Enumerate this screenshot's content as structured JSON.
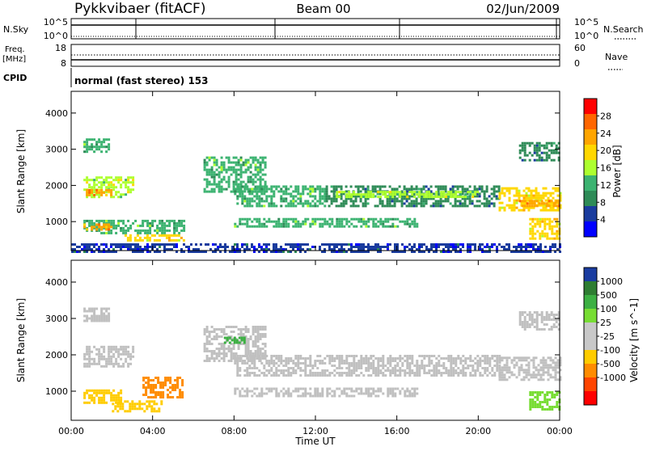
{
  "header": {
    "station": "Pykkvibaer (fitACF)",
    "beam": "Beam 00",
    "date": "02/Jun/2009"
  },
  "top_panels": {
    "nsky_label": "N.Sky",
    "nsky_ticks": [
      "10^5",
      "10^0"
    ],
    "nsearch_label": "N.Search",
    "nsearch_ticks": [
      "10^5",
      "10^0"
    ],
    "freq_label": "Freq.",
    "freq_unit": "[MHz]",
    "freq_ticks": [
      "18",
      "8"
    ],
    "nave_label": "Nave",
    "nave_ticks": [
      "60",
      "0"
    ],
    "cpid_label": "CPID",
    "cpid_text": "normal (fast stereo) 153"
  },
  "colors": {
    "scale": [
      "#0000ff",
      "#1a3c9e",
      "#2e8b57",
      "#3cb371",
      "#adff2f",
      "#ffd700",
      "#ffa500",
      "#ff6600",
      "#ff0000"
    ],
    "velocity": [
      "#1a3ca0",
      "#2e7d32",
      "#3cb043",
      "#77dd33",
      "#c8c8c8",
      "#c8c8c8",
      "#ffcc00",
      "#ff8c00",
      "#ff4500",
      "#ff0000"
    ],
    "ground": "#c0c0c0"
  },
  "chart_data": [
    {
      "type": "heatmap",
      "panel": "power",
      "xlabel": "Time UT",
      "ylabel": "Slant Range [km]",
      "x_ticks": [
        "00:00",
        "04:00",
        "08:00",
        "12:00",
        "16:00",
        "20:00",
        "00:00"
      ],
      "xlim": [
        0,
        24
      ],
      "ylim": [
        200,
        4600
      ],
      "y_ticks": [
        1000,
        2000,
        3000,
        4000
      ],
      "colorbar_label": "Power [dB]",
      "colorbar_ticks": [
        4,
        8,
        12,
        16,
        20,
        24,
        28
      ],
      "colorbar_range": [
        0,
        32
      ],
      "bands": [
        {
          "t0": 0.6,
          "t1": 3.0,
          "r0": 1650,
          "r1": 2250,
          "level": 16
        },
        {
          "t0": 0.6,
          "t1": 2.0,
          "r0": 1700,
          "r1": 1900,
          "level": 24
        },
        {
          "t0": 0.6,
          "t1": 5.5,
          "r0": 700,
          "r1": 1050,
          "level": 12
        },
        {
          "t0": 0.6,
          "t1": 2.0,
          "r0": 800,
          "r1": 950,
          "level": 24
        },
        {
          "t0": 2.5,
          "t1": 5.5,
          "r0": 450,
          "r1": 650,
          "level": 20
        },
        {
          "t0": 0.6,
          "t1": 1.8,
          "r0": 2900,
          "r1": 3300,
          "level": 12
        },
        {
          "t0": 6.5,
          "t1": 9.5,
          "r0": 1800,
          "r1": 2800,
          "level": 12
        },
        {
          "t0": 8.0,
          "t1": 12.5,
          "r0": 1400,
          "r1": 2000,
          "level": 12
        },
        {
          "t0": 12.5,
          "t1": 21.0,
          "r0": 1400,
          "r1": 2000,
          "level": 8
        },
        {
          "t0": 13.0,
          "t1": 20.0,
          "r0": 1700,
          "r1": 1850,
          "level": 16
        },
        {
          "t0": 21.0,
          "t1": 24.0,
          "r0": 1300,
          "r1": 1950,
          "level": 20
        },
        {
          "t0": 22.0,
          "t1": 24.0,
          "r0": 1400,
          "r1": 1600,
          "level": 24
        },
        {
          "t0": 22.5,
          "t1": 24.0,
          "r0": 500,
          "r1": 1100,
          "level": 20
        },
        {
          "t0": 8.0,
          "t1": 17.0,
          "r0": 850,
          "r1": 1100,
          "level": 12
        },
        {
          "t0": 22.0,
          "t1": 24.0,
          "r0": 2700,
          "r1": 3200,
          "level": 8
        },
        {
          "t0": 0.0,
          "t1": 24.0,
          "r0": 180,
          "r1": 400,
          "level": 4
        }
      ]
    },
    {
      "type": "heatmap",
      "panel": "velocity",
      "xlabel": "Time UT",
      "ylabel": "Slant Range [km]",
      "x_ticks": [
        "00:00",
        "04:00",
        "08:00",
        "12:00",
        "16:00",
        "20:00",
        "00:00"
      ],
      "xlim": [
        0,
        24
      ],
      "ylim": [
        200,
        4600
      ],
      "y_ticks": [
        1000,
        2000,
        3000,
        4000
      ],
      "colorbar_label": "Velocity [m s^-1]",
      "colorbar_ticks": [
        "1000",
        "500",
        "100",
        "25",
        "-25",
        "-100",
        "-500",
        "-1000"
      ],
      "bands": [
        {
          "t0": 0.6,
          "t1": 3.0,
          "r0": 1650,
          "r1": 2250,
          "cat": "ground"
        },
        {
          "t0": 0.6,
          "t1": 1.8,
          "r0": 2900,
          "r1": 3300,
          "cat": "ground"
        },
        {
          "t0": 0.6,
          "t1": 2.5,
          "r0": 700,
          "r1": 1050,
          "cat": -100
        },
        {
          "t0": 2.0,
          "t1": 4.5,
          "r0": 450,
          "r1": 750,
          "cat": -100
        },
        {
          "t0": 3.5,
          "t1": 5.5,
          "r0": 800,
          "r1": 1400,
          "cat": -500
        },
        {
          "t0": 6.5,
          "t1": 9.5,
          "r0": 1800,
          "r1": 2800,
          "cat": "ground"
        },
        {
          "t0": 8.0,
          "t1": 21.0,
          "r0": 1400,
          "r1": 2000,
          "cat": "ground"
        },
        {
          "t0": 8.0,
          "t1": 17.0,
          "r0": 850,
          "r1": 1100,
          "cat": "ground"
        },
        {
          "t0": 21.0,
          "t1": 24.0,
          "r0": 1300,
          "r1": 1950,
          "cat": "ground"
        },
        {
          "t0": 22.0,
          "t1": 24.0,
          "r0": 2700,
          "r1": 3200,
          "cat": "ground"
        },
        {
          "t0": 22.5,
          "t1": 24.0,
          "r0": 500,
          "r1": 1000,
          "cat": 100
        },
        {
          "t0": 7.5,
          "t1": 8.5,
          "r0": 2300,
          "r1": 2500,
          "cat": 500
        }
      ]
    }
  ]
}
